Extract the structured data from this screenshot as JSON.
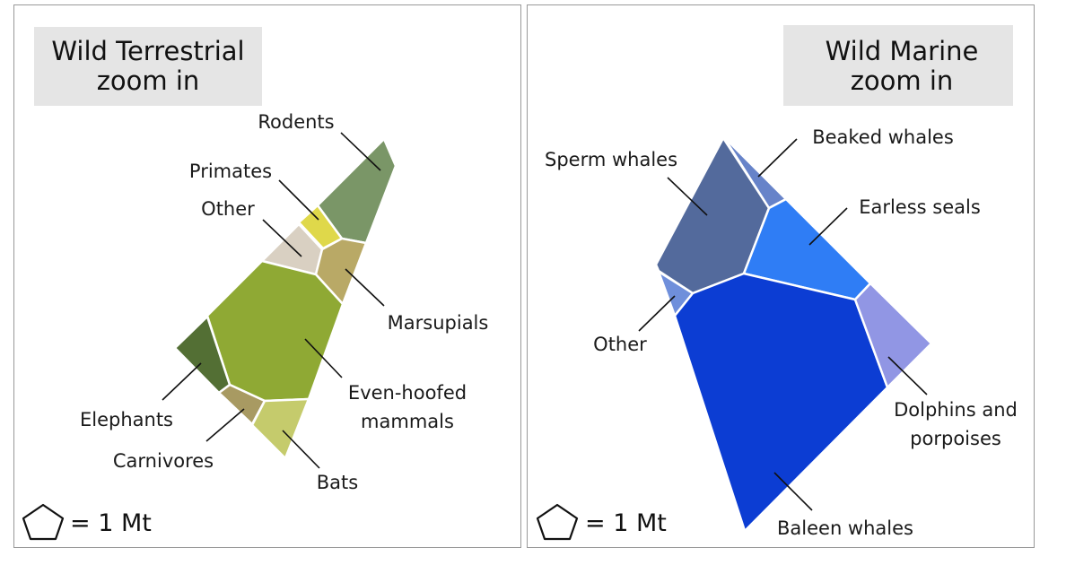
{
  "left_panel": {
    "title_line1": "Wild Terrestrial",
    "title_line2": "zoom in",
    "legend": "= 1 Mt",
    "cells": [
      {
        "label": "Rodents",
        "color": "#7a9667"
      },
      {
        "label": "Primates",
        "color": "#dfd84a"
      },
      {
        "label": "Other",
        "color": "#d9d0c2"
      },
      {
        "label": "Marsupials",
        "color": "#b9a966"
      },
      {
        "label": "Even-hoofed",
        "label2": "mammals",
        "color": "#8fa934"
      },
      {
        "label": "Elephants",
        "color": "#536f34"
      },
      {
        "label": "Carnivores",
        "color": "#a89a62"
      },
      {
        "label": "Bats",
        "color": "#c5cb6c"
      }
    ]
  },
  "right_panel": {
    "title_line1": "Wild Marine",
    "title_line2": "zoom in",
    "legend": "= 1 Mt",
    "cells": [
      {
        "label": "Sperm whales",
        "color": "#536a9c"
      },
      {
        "label": "Beaked whales",
        "color": "#6783c9"
      },
      {
        "label": "Earless seals",
        "color": "#2f7df5"
      },
      {
        "label": "Other",
        "color": "#6f8fdb"
      },
      {
        "label": "Baleen whales",
        "color": "#0c3dd3"
      },
      {
        "label": "Dolphins and",
        "label2": "porpoises",
        "color": "#9196e4"
      }
    ]
  }
}
